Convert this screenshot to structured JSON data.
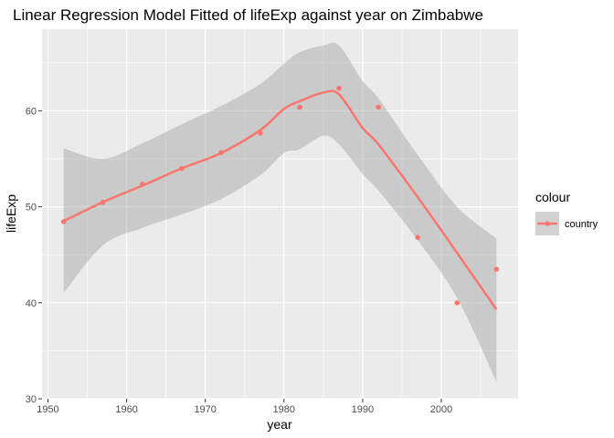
{
  "chart_data": {
    "type": "scatter",
    "title": "Linear Regression Model Fitted of lifeExp against year on Zimbabwe",
    "xlabel": "year",
    "ylabel": "lifeExp",
    "xlim": [
      1949.25,
      2009.75
    ],
    "ylim": [
      30,
      68.5
    ],
    "x_ticks": [
      1950,
      1960,
      1970,
      1980,
      1990,
      2000
    ],
    "y_ticks": [
      30,
      40,
      50,
      60
    ],
    "grid": true,
    "legend": {
      "title": "colour",
      "position": "right",
      "entries": [
        "country"
      ]
    },
    "series": [
      {
        "name": "country",
        "color": "#f8766d",
        "points": [
          {
            "x": 1952,
            "y": 48.45
          },
          {
            "x": 1957,
            "y": 50.47
          },
          {
            "x": 1962,
            "y": 52.36
          },
          {
            "x": 1967,
            "y": 53.99
          },
          {
            "x": 1972,
            "y": 55.64
          },
          {
            "x": 1977,
            "y": 57.67
          },
          {
            "x": 1982,
            "y": 60.36
          },
          {
            "x": 1987,
            "y": 62.35
          },
          {
            "x": 1992,
            "y": 60.38
          },
          {
            "x": 1997,
            "y": 46.81
          },
          {
            "x": 2002,
            "y": 39.99
          },
          {
            "x": 2007,
            "y": 43.49
          }
        ],
        "smooth": {
          "x": [
            1952,
            1957,
            1962,
            1967,
            1972,
            1977,
            1980,
            1982,
            1985,
            1987,
            1990,
            1992,
            1997,
            2002,
            2007
          ],
          "y": [
            48.5,
            50.5,
            52.2,
            54.0,
            55.6,
            58.0,
            60.2,
            61.0,
            61.9,
            61.7,
            58.2,
            56.5,
            51.0,
            45.2,
            39.3
          ],
          "lower": [
            41.0,
            46.0,
            47.8,
            49.2,
            50.8,
            53.3,
            55.6,
            56.0,
            57.4,
            56.5,
            53.4,
            51.7,
            46.5,
            40.5,
            31.8
          ],
          "upper": [
            56.1,
            55.0,
            56.6,
            58.6,
            60.5,
            62.8,
            64.9,
            66.1,
            66.8,
            66.8,
            63.1,
            61.3,
            55.4,
            50.0,
            46.7
          ]
        }
      }
    ]
  }
}
